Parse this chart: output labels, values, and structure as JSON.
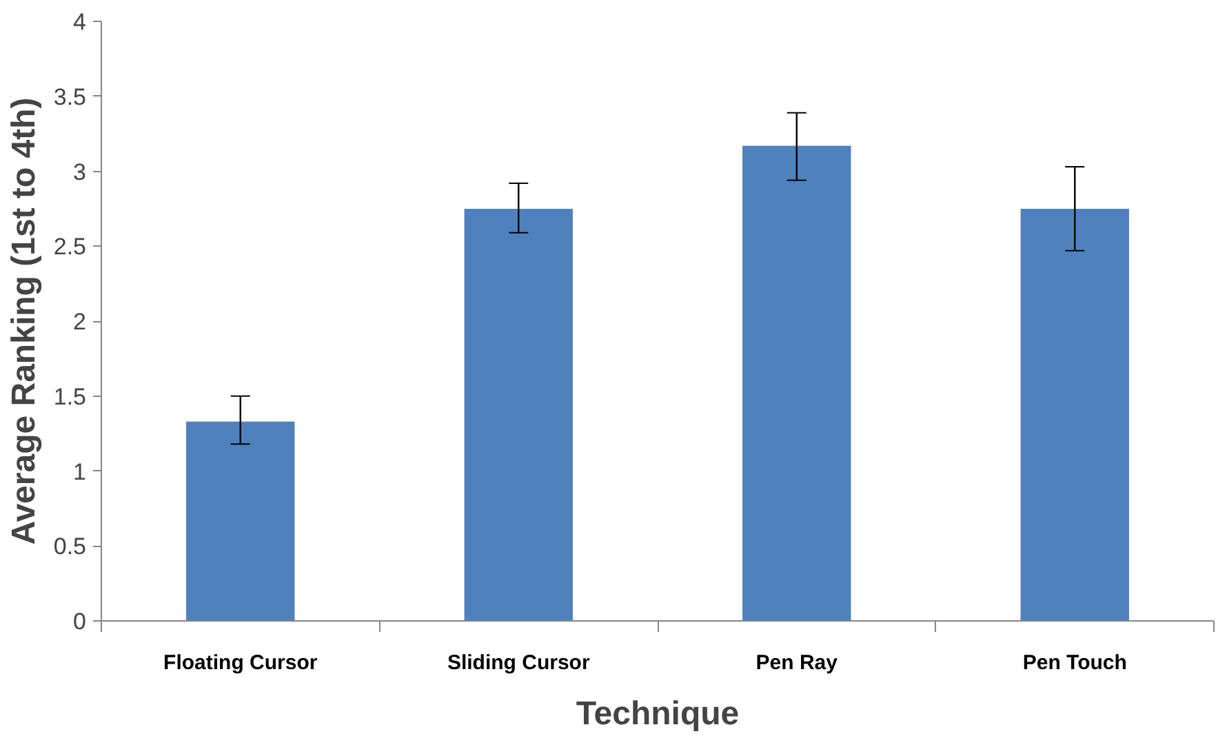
{
  "chart_data": {
    "type": "bar",
    "xlabel": "Technique",
    "ylabel": "Average Ranking (1st to 4th)",
    "categories": [
      "Floating Cursor",
      "Sliding Cursor",
      "Pen Ray",
      "Pen Touch"
    ],
    "values": [
      1.33,
      2.75,
      3.17,
      2.75
    ],
    "errors": [
      [
        1.18,
        1.5
      ],
      [
        2.59,
        2.92
      ],
      [
        2.94,
        3.39
      ],
      [
        2.47,
        3.03
      ]
    ],
    "color": "#4f81bd",
    "ylim": [
      0,
      4
    ],
    "yticks": [
      0,
      0.5,
      1,
      1.5,
      2,
      2.5,
      3,
      3.5,
      4
    ],
    "grid": false
  }
}
